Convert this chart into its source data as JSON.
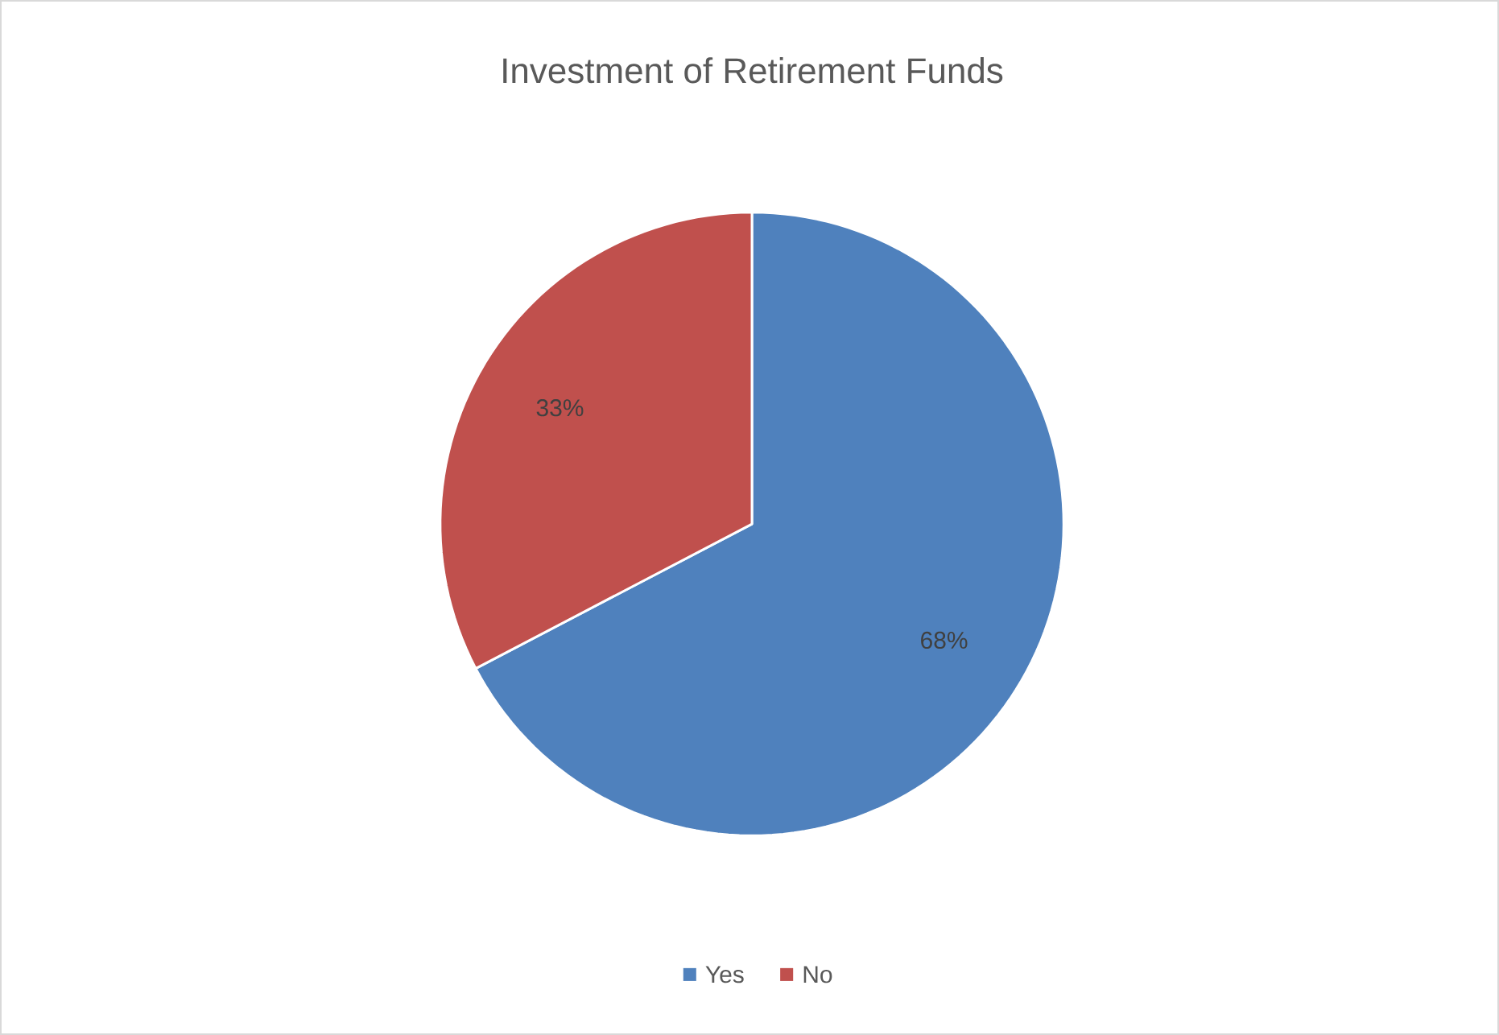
{
  "chart_data": {
    "type": "pie",
    "title": "Investment of Retirement Funds",
    "categories": [
      "Yes",
      "No"
    ],
    "values": [
      68,
      33
    ],
    "value_labels": [
      "68%",
      "33%"
    ],
    "colors": [
      "#4f81bd",
      "#c0504d"
    ],
    "legend": "bottom"
  }
}
